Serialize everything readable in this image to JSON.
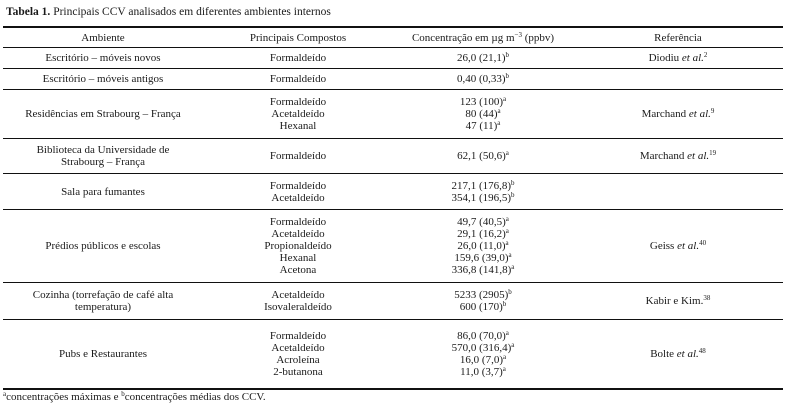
{
  "caption": {
    "label": "Tabela 1.",
    "text": " Principais CCV analisados em diferentes ambientes internos"
  },
  "headers": [
    "Ambiente",
    "Principais Compostos",
    "Concentração em µg m",
    "−3",
    " (ppbv)",
    "Referência"
  ],
  "rows": [
    {
      "ambiente": [
        "Escritório – móveis novos"
      ],
      "compounds": [
        [
          "Formaldeído",
          "26,0 (21,1)",
          "b"
        ]
      ],
      "ref": [
        "Diodiu ",
        "et al.",
        "2"
      ]
    },
    {
      "ambiente": [
        "Escritório – móveis antigos"
      ],
      "compounds": [
        [
          "Formaldeído",
          "0,40 (0,33)",
          "b"
        ]
      ],
      "ref": null
    },
    {
      "ambiente": [
        "Residências em Strabourg – França"
      ],
      "compounds": [
        [
          "Formaldeído",
          "123 (100)",
          "a"
        ],
        [
          "Acetaldeído",
          "80 (44)",
          "a"
        ],
        [
          "Hexanal",
          "47 (11)",
          "a"
        ]
      ],
      "ref": [
        "Marchand ",
        "et al.",
        "9"
      ]
    },
    {
      "ambiente": [
        "Biblioteca da Universidade de",
        "Strabourg – França"
      ],
      "compounds": [
        [
          "Formaldeído",
          "62,1 (50,6)",
          "a"
        ]
      ],
      "ref": [
        "Marchand ",
        "et al.",
        "19"
      ]
    },
    {
      "ambiente": [
        "Sala para fumantes"
      ],
      "compounds": [
        [
          "Formaldeído",
          "217,1 (176,8)",
          "b"
        ],
        [
          "Acetaldeído",
          "354,1 (196,5)",
          "b"
        ]
      ],
      "ref": null
    },
    {
      "ambiente": [
        "Prédios públicos e escolas"
      ],
      "compounds": [
        [
          "Formaldeído",
          "49,7 (40,5)",
          "a"
        ],
        [
          "Acetaldeído",
          "29,1 (16,2)",
          "a"
        ],
        [
          "Propionaldeído",
          "26,0 (11,0)",
          "a"
        ],
        [
          "Hexanal",
          "159,6 (39,0)",
          "a"
        ],
        [
          "Acetona",
          "336,8 (141,8)",
          "a"
        ]
      ],
      "ref": [
        "Geiss ",
        "et al.",
        "40"
      ]
    },
    {
      "ambiente": [
        "Cozinha (torrefação de café alta",
        "temperatura)"
      ],
      "compounds": [
        [
          "Acetaldeído",
          "5233 (2905)",
          "b"
        ],
        [
          "Isovaleraldeído",
          "600 (170)",
          "b"
        ]
      ],
      "ref": [
        "Kabir e Kim.",
        "",
        "38"
      ]
    },
    {
      "ambiente": [
        "Pubs e Restaurantes"
      ],
      "compounds": [
        [
          "Formaldeído",
          "86,0 (70,0)",
          "a"
        ],
        [
          "Acetaldeído",
          "570,0 (316,4)",
          "a"
        ],
        [
          "Acroleína",
          "16,0 (7,0)",
          "a"
        ],
        [
          "2-butanona",
          "11,0 (3,7)",
          "a"
        ]
      ],
      "ref": [
        "Bolte ",
        "et al.",
        "48"
      ]
    }
  ],
  "footnote": {
    "a": "a",
    "text_a": "concentrações máximas e ",
    "b": "b",
    "text_b": "concentrações médias dos CCV."
  }
}
